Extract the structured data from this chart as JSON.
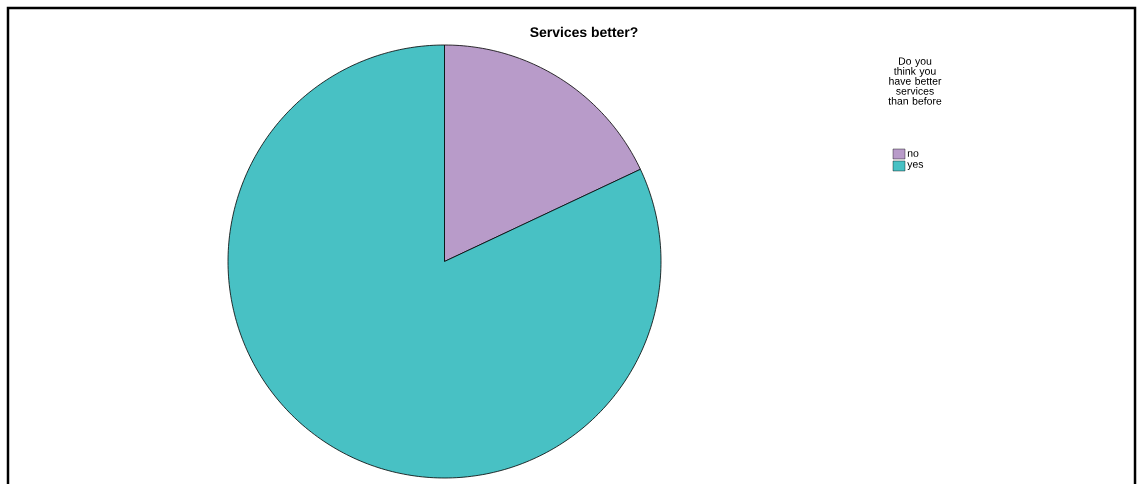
{
  "chart_data": {
    "type": "pie",
    "title": "Services better?",
    "legend_title": "Do you think you have better services than before",
    "categories": [
      "no",
      "yes"
    ],
    "values": [
      18,
      82
    ],
    "colors": [
      "#b89bc9",
      "#48c1c4"
    ],
    "legend": "top right"
  }
}
